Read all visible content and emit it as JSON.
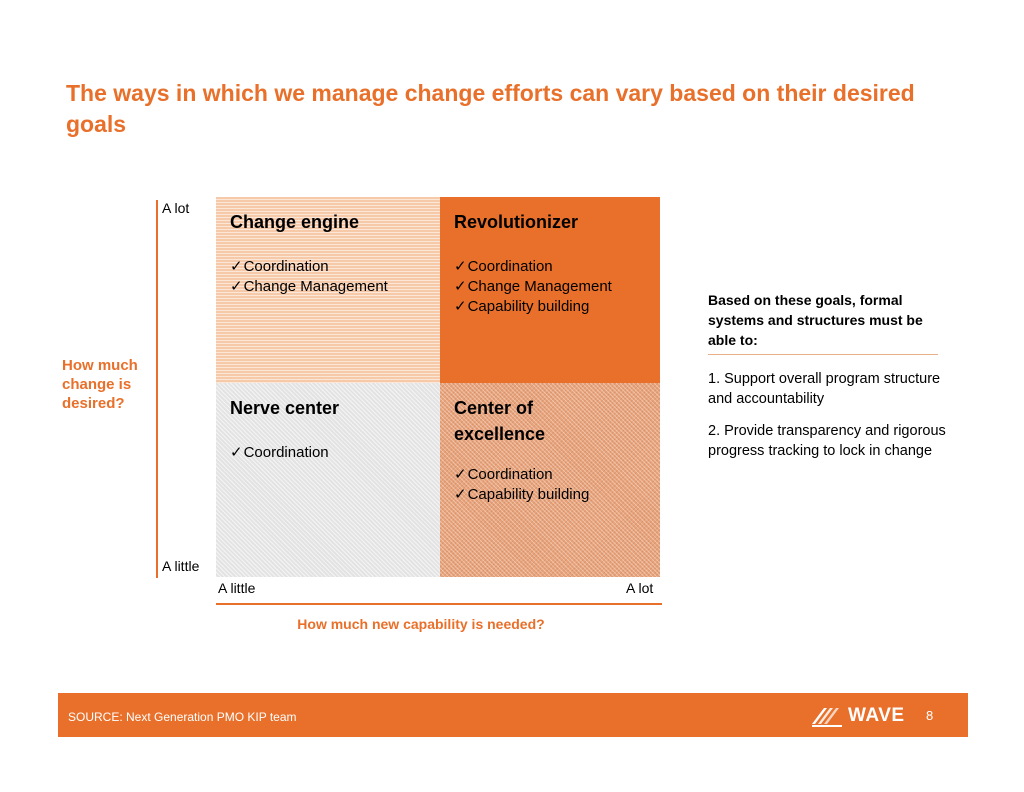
{
  "title": "The ways in which we manage change efforts can vary based on their desired goals",
  "y_axis": {
    "title": "How much change is desired?",
    "top_label": "A lot",
    "bottom_label": "A little"
  },
  "x_axis": {
    "title": "How much new capability is needed?",
    "left_label": "A little",
    "right_label": "A lot"
  },
  "quadrants": {
    "top_left": {
      "title": "Change engine",
      "items": [
        "Coordination",
        "Change Management"
      ]
    },
    "top_right": {
      "title": "Revolutionizer",
      "items": [
        "Coordination",
        "Change Management",
        "Capability building"
      ]
    },
    "bottom_left": {
      "title": "Nerve center",
      "items": [
        "Coordination"
      ]
    },
    "bottom_right": {
      "title": "Center of excellence",
      "items": [
        "Coordination",
        "Capability building"
      ]
    }
  },
  "sidebar": {
    "heading": "Based on these goals, formal systems and structures must be able to:",
    "points": [
      "1. Support overall program structure and accountability",
      "2. Provide transparency and rigorous progress tracking to lock in change"
    ]
  },
  "footer": {
    "source": "SOURCE: Next Generation PMO KIP team",
    "logo_text": "WAVE",
    "page_number": "8"
  },
  "colors": {
    "accent": "#E8702A",
    "quadrant_top_left": "#F6C9A8",
    "quadrant_top_right": "#E8702A",
    "quadrant_bottom_left": "#E3E3E3",
    "quadrant_bottom_right": "#E9A37A"
  }
}
